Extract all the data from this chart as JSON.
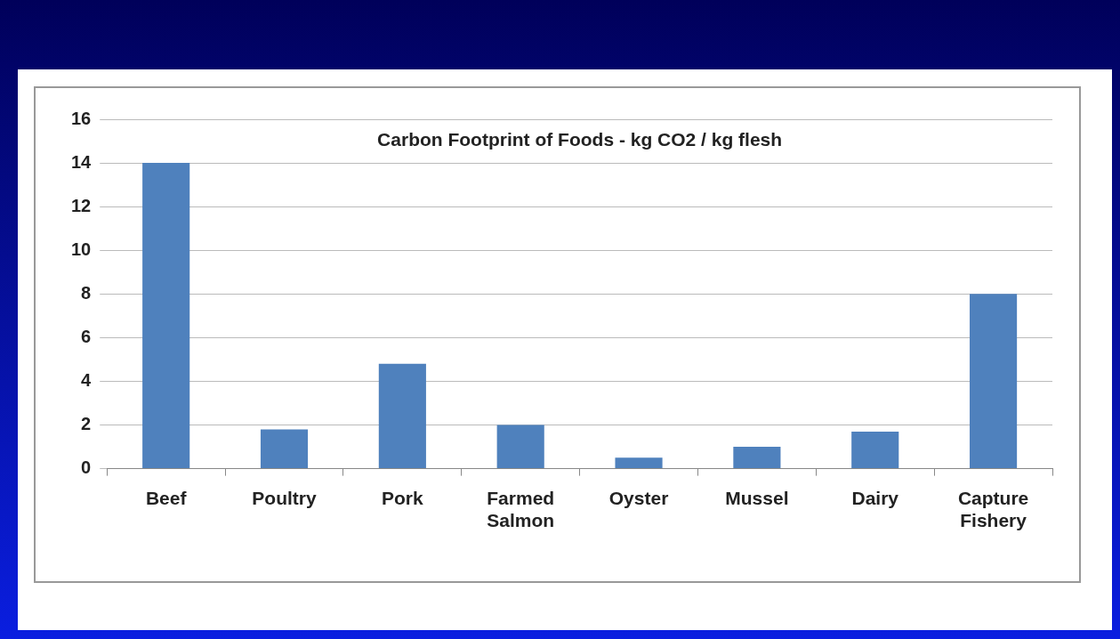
{
  "chart_data": {
    "type": "bar",
    "title": "Carbon Footprint of Foods - kg CO2 / kg flesh",
    "categories": [
      "Beef",
      "Poultry",
      "Pork",
      "Farmed Salmon",
      "Oyster",
      "Mussel",
      "Dairy",
      "Capture Fishery"
    ],
    "values": [
      14,
      1.8,
      4.8,
      2,
      0.5,
      1,
      1.7,
      8
    ],
    "color": "#4f81bd",
    "ylim": [
      0,
      16
    ],
    "yticks": [
      0,
      2,
      4,
      6,
      8,
      10,
      12,
      14,
      16
    ],
    "grid": "y",
    "legend": false
  }
}
